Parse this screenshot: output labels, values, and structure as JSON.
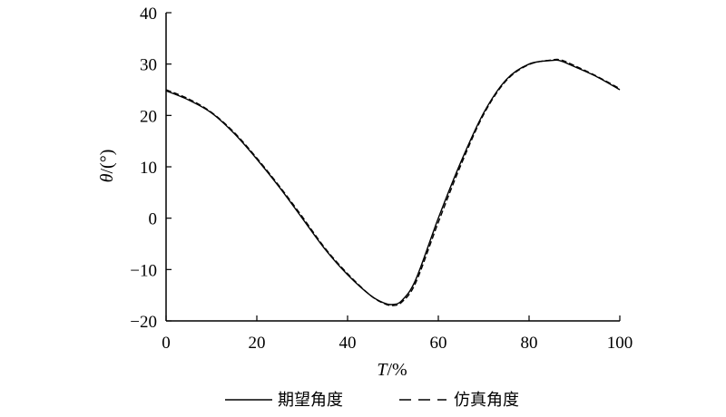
{
  "chart_data": {
    "type": "line",
    "xlabel_var": "T",
    "xlabel_unit": "/%",
    "ylabel_var": "θ",
    "ylabel_unit": "/(°)",
    "xlim": [
      0,
      100
    ],
    "ylim": [
      -20,
      40
    ],
    "xticks": [
      0,
      20,
      40,
      60,
      80,
      100
    ],
    "yticks": [
      -20,
      -10,
      0,
      10,
      20,
      30,
      40
    ],
    "ytick_labels": [
      "−20",
      "−10",
      "0",
      "10",
      "20",
      "30",
      "40"
    ],
    "grid": false,
    "legend_position": "bottom",
    "series": [
      {
        "name": "期望角度",
        "style": "solid",
        "x": [
          0,
          5,
          10,
          15,
          20,
          25,
          30,
          35,
          40,
          45,
          48,
          50,
          52,
          55,
          60,
          65,
          70,
          75,
          80,
          85,
          87,
          90,
          95,
          100
        ],
        "y": [
          24.8,
          23,
          20.5,
          16.5,
          11.5,
          6,
          0,
          -6,
          -11,
          -15,
          -16.5,
          -16.8,
          -16,
          -12,
          0,
          11,
          20.5,
          27,
          30,
          30.7,
          30.6,
          29.5,
          27.5,
          25
        ]
      },
      {
        "name": "仿真角度",
        "style": "dashed",
        "x": [
          0,
          5,
          10,
          15,
          20,
          25,
          30,
          35,
          40,
          45,
          48,
          50,
          52,
          55,
          60,
          65,
          70,
          75,
          80,
          85,
          87,
          90,
          95,
          100
        ],
        "y": [
          25,
          23.2,
          20.6,
          16.7,
          11.7,
          6.2,
          0.3,
          -5.8,
          -10.8,
          -15,
          -16.6,
          -17,
          -16.3,
          -12.6,
          -0.8,
          10.4,
          20.2,
          26.8,
          29.9,
          30.8,
          30.8,
          29.7,
          27.6,
          25.2
        ]
      }
    ]
  }
}
